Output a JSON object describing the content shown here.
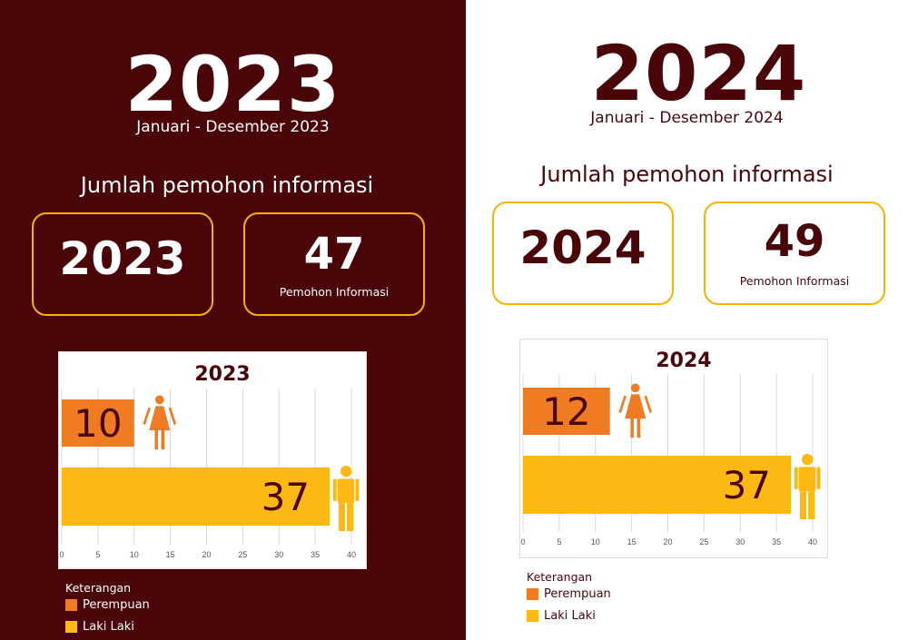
{
  "panels": [
    {
      "year": "2023",
      "period": "Januari - Desember 2023",
      "heading": "Jumlah pemohon informasi",
      "year_box": "2023",
      "count": "47",
      "count_caption": "Pemohon Informasi",
      "legend_title": "Keterangan",
      "legend_female": "Perempuan",
      "legend_male": "Laki Laki"
    },
    {
      "year": "2024",
      "period": "Januari - Desember 2024",
      "heading": "Jumlah pemohon informasi",
      "year_box": "2024",
      "count": "49",
      "count_caption": "Pemohon Informasi",
      "legend_title": "Keterangan",
      "legend_female": "Perempuan",
      "legend_male": "Laki Laki"
    }
  ],
  "colors": {
    "maroon": "#4a0508",
    "female": "#ef7b23",
    "male": "#fdb913",
    "border": "#f5b400"
  },
  "icons": {
    "female": "female-person-icon",
    "male": "male-person-icon"
  },
  "chart_data": [
    {
      "type": "bar",
      "orientation": "horizontal",
      "title": "2023",
      "categories": [
        "Perempuan",
        "Laki Laki"
      ],
      "values": [
        10,
        37
      ],
      "xlim": [
        0,
        40
      ],
      "xticks": [
        "0",
        "5",
        "10",
        "15",
        "20",
        "25",
        "30",
        "35",
        "40"
      ],
      "grid": true
    },
    {
      "type": "bar",
      "orientation": "horizontal",
      "title": "2024",
      "categories": [
        "Perempuan",
        "Laki Laki"
      ],
      "values": [
        12,
        37
      ],
      "xlim": [
        0,
        40
      ],
      "xticks": [
        "0",
        "5",
        "10",
        "15",
        "20",
        "25",
        "30",
        "35",
        "40"
      ],
      "grid": true
    }
  ]
}
